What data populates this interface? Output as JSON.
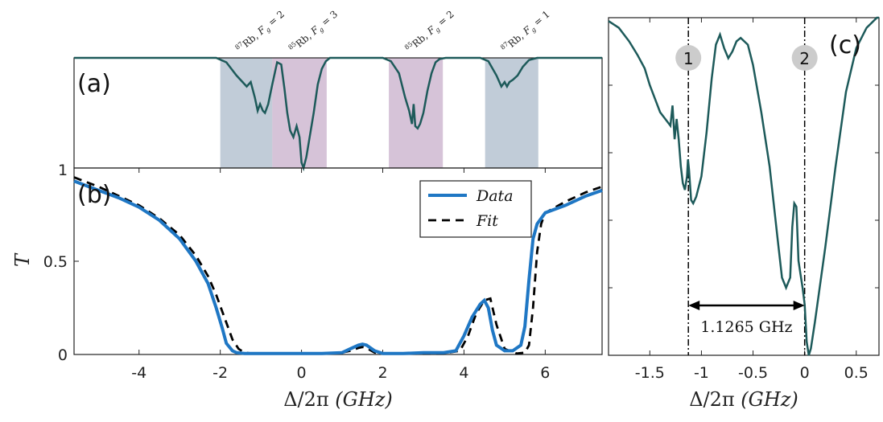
{
  "colors": {
    "trace": "#1d5a5a",
    "data": "#1f77c4",
    "fit": "#000000",
    "band_rb87": "#8ea2b8",
    "band_rb85": "#b492b8",
    "marker_circle": "#cccccc"
  },
  "chart_data": [
    {
      "panel": "(a)",
      "type": "line",
      "xlim": [
        -5.6,
        7.4
      ],
      "ylim": [
        0,
        1
      ],
      "ytick_labels": [
        "1"
      ],
      "bands": [
        {
          "label": "87Rb, F_g = 2",
          "label_sup": "87",
          "label_main": "Rb, ",
          "label_sub": "F",
          "label_g": "g",
          "label_val": " = 2",
          "x0": -2.0,
          "x1": -0.72,
          "color": "band_rb87"
        },
        {
          "label": "85Rb, F_g = 3",
          "label_sup": "85",
          "label_main": "Rb, ",
          "label_sub": "F",
          "label_g": "g",
          "label_val": " = 3",
          "x0": -0.72,
          "x1": 0.62,
          "color": "band_rb85"
        },
        {
          "label": "85Rb, F_g = 2",
          "label_sup": "85",
          "label_main": "Rb, ",
          "label_sub": "F",
          "label_g": "g",
          "label_val": " = 2",
          "x0": 2.15,
          "x1": 3.48,
          "color": "band_rb85"
        },
        {
          "label": "87Rb, F_g = 1",
          "label_sup": "87",
          "label_main": "Rb, ",
          "label_sub": "F",
          "label_g": "g",
          "label_val": " = 1",
          "x0": 4.52,
          "x1": 5.83,
          "color": "band_rb87"
        }
      ],
      "series": [
        {
          "x": [
            -5.6,
            -4,
            -2.5,
            -2.1,
            -1.85,
            -1.6,
            -1.35,
            -1.25,
            -1.15,
            -1.08,
            -1.02,
            -0.95,
            -0.9,
            -0.82,
            -0.72,
            -0.6,
            -0.5,
            -0.42,
            -0.35,
            -0.28,
            -0.2,
            -0.12,
            -0.05,
            0,
            0.05,
            0.12,
            0.2,
            0.3,
            0.4,
            0.5,
            0.6,
            0.7,
            0.9,
            1.5,
            2.0,
            2.2,
            2.4,
            2.55,
            2.65,
            2.72,
            2.76,
            2.8,
            2.86,
            2.92,
            3.0,
            3.1,
            3.2,
            3.3,
            3.4,
            3.55,
            3.8,
            4.4,
            4.6,
            4.8,
            4.92,
            5.0,
            5.06,
            5.12,
            5.2,
            5.32,
            5.45,
            5.6,
            5.8,
            6.2,
            7.4
          ],
          "y": [
            1.0,
            1.0,
            1.0,
            1.0,
            0.96,
            0.84,
            0.74,
            0.78,
            0.64,
            0.52,
            0.58,
            0.52,
            0.5,
            0.58,
            0.76,
            0.96,
            0.94,
            0.72,
            0.5,
            0.34,
            0.28,
            0.38,
            0.28,
            0.05,
            0.0,
            0.1,
            0.28,
            0.5,
            0.76,
            0.9,
            0.97,
            1.0,
            1.0,
            1.0,
            1.0,
            0.97,
            0.86,
            0.64,
            0.52,
            0.4,
            0.58,
            0.38,
            0.36,
            0.4,
            0.5,
            0.7,
            0.86,
            0.96,
            0.99,
            1.0,
            1.0,
            1.0,
            0.97,
            0.84,
            0.74,
            0.78,
            0.74,
            0.78,
            0.8,
            0.84,
            0.92,
            0.98,
            1.0,
            1.0,
            1.0
          ]
        }
      ]
    },
    {
      "panel": "(b)",
      "type": "line",
      "ylabel": "T",
      "xlabel_pre": "Δ/2π ",
      "xlabel_unit": "(GHz)",
      "xlim": [
        -5.6,
        7.4
      ],
      "ylim": [
        0,
        1.0
      ],
      "xticks": [
        -4,
        -2,
        0,
        2,
        4,
        6
      ],
      "xtick_labels": [
        "-4",
        "-2",
        "0",
        "2",
        "4",
        "6"
      ],
      "yticks": [
        0,
        0.5
      ],
      "ytick_labels": [
        "0",
        "0.5"
      ],
      "legend": {
        "position": "top-right",
        "entries": [
          "Data",
          "Fit"
        ]
      },
      "series": [
        {
          "name": "Data",
          "style": "solid",
          "x": [
            -5.6,
            -5,
            -4.5,
            -4,
            -3.5,
            -3,
            -2.6,
            -2.3,
            -2.1,
            -1.95,
            -1.85,
            -1.7,
            -1.6,
            -1.4,
            -1,
            -0.5,
            0,
            0.5,
            1,
            1.2,
            1.4,
            1.5,
            1.6,
            1.8,
            2,
            2.5,
            3,
            3.5,
            3.8,
            4.0,
            4.2,
            4.4,
            4.5,
            4.6,
            4.7,
            4.8,
            5.0,
            5.2,
            5.4,
            5.5,
            5.6,
            5.7,
            5.8,
            6.0,
            6.5,
            7.0,
            7.4
          ],
          "y": [
            0.93,
            0.88,
            0.84,
            0.79,
            0.72,
            0.62,
            0.5,
            0.38,
            0.25,
            0.14,
            0.06,
            0.02,
            0.01,
            0.005,
            0.005,
            0.005,
            0.005,
            0.005,
            0.01,
            0.03,
            0.05,
            0.055,
            0.05,
            0.02,
            0.005,
            0.005,
            0.01,
            0.01,
            0.02,
            0.1,
            0.2,
            0.27,
            0.29,
            0.25,
            0.13,
            0.05,
            0.02,
            0.02,
            0.05,
            0.15,
            0.4,
            0.62,
            0.7,
            0.76,
            0.8,
            0.85,
            0.88
          ]
        },
        {
          "name": "Fit",
          "style": "dashed",
          "x": [
            -5.6,
            -5,
            -4.5,
            -4,
            -3.5,
            -3,
            -2.6,
            -2.3,
            -2.1,
            -1.9,
            -1.8,
            -1.7,
            -1.55,
            -1.4,
            -1.2,
            -1,
            -0.5,
            0,
            0.5,
            1,
            1.2,
            1.4,
            1.5,
            1.6,
            1.8,
            2,
            2.5,
            3,
            3.5,
            3.9,
            4.1,
            4.3,
            4.5,
            4.65,
            4.8,
            5.0,
            5.3,
            5.5,
            5.6,
            5.7,
            5.8,
            5.9,
            6.0,
            6.5,
            7.0,
            7.4
          ],
          "y": [
            0.95,
            0.9,
            0.85,
            0.8,
            0.73,
            0.64,
            0.53,
            0.42,
            0.32,
            0.2,
            0.14,
            0.08,
            0.03,
            0.01,
            0.005,
            0.005,
            0.005,
            0.005,
            0.005,
            0.01,
            0.02,
            0.035,
            0.04,
            0.035,
            0.01,
            0.005,
            0.005,
            0.005,
            0.005,
            0.02,
            0.1,
            0.22,
            0.29,
            0.3,
            0.16,
            0.03,
            0.005,
            0.01,
            0.05,
            0.25,
            0.55,
            0.7,
            0.76,
            0.82,
            0.87,
            0.9
          ]
        }
      ]
    },
    {
      "panel": "(c)",
      "type": "line",
      "xlabel_pre": "Δ/2π ",
      "xlabel_unit": "(GHz)",
      "xlim": [
        -1.9,
        0.72
      ],
      "ylim": [
        0,
        1
      ],
      "xticks": [
        -1.5,
        -1,
        -0.5,
        0,
        0.5
      ],
      "xtick_labels": [
        "-1.5",
        "-1",
        "-0.5",
        "0",
        "0.5"
      ],
      "markers": [
        {
          "label": "1",
          "x": -1.1265
        },
        {
          "label": "2",
          "x": 0
        }
      ],
      "distance_label": "1.1265 GHz",
      "series": [
        {
          "x": [
            -1.9,
            -1.8,
            -1.7,
            -1.62,
            -1.55,
            -1.5,
            -1.45,
            -1.4,
            -1.35,
            -1.3,
            -1.28,
            -1.26,
            -1.24,
            -1.22,
            -1.2,
            -1.18,
            -1.16,
            -1.14,
            -1.13,
            -1.12,
            -1.1,
            -1.08,
            -1.05,
            -1.0,
            -0.95,
            -0.9,
            -0.86,
            -0.82,
            -0.78,
            -0.74,
            -0.7,
            -0.66,
            -0.62,
            -0.55,
            -0.5,
            -0.42,
            -0.34,
            -0.26,
            -0.22,
            -0.18,
            -0.14,
            -0.12,
            -0.1,
            -0.08,
            -0.06,
            -0.04,
            -0.02,
            0,
            0.02,
            0.04,
            0.06,
            0.1,
            0.2,
            0.3,
            0.4,
            0.5,
            0.6,
            0.7,
            0.72
          ],
          "y": [
            0.99,
            0.97,
            0.93,
            0.89,
            0.85,
            0.8,
            0.76,
            0.72,
            0.7,
            0.68,
            0.74,
            0.64,
            0.7,
            0.64,
            0.56,
            0.51,
            0.49,
            0.53,
            0.58,
            0.55,
            0.46,
            0.45,
            0.47,
            0.53,
            0.66,
            0.82,
            0.92,
            0.95,
            0.91,
            0.88,
            0.9,
            0.93,
            0.94,
            0.92,
            0.86,
            0.72,
            0.56,
            0.34,
            0.23,
            0.2,
            0.23,
            0.38,
            0.45,
            0.44,
            0.28,
            0.24,
            0.2,
            0.15,
            0.04,
            0.0,
            0.02,
            0.1,
            0.32,
            0.56,
            0.78,
            0.91,
            0.97,
            1.0,
            1.0
          ]
        }
      ]
    }
  ]
}
